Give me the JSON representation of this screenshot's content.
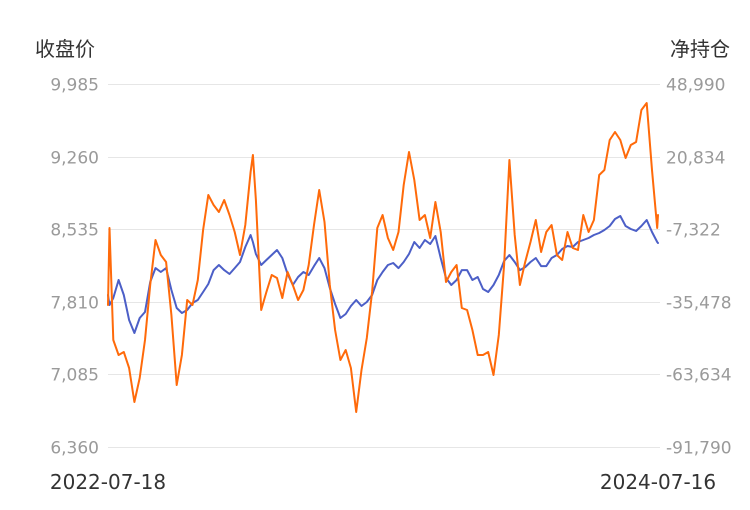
{
  "chart_data": {
    "type": "line",
    "ylabel": "收盘价",
    "y2label": "净持仓",
    "ylim": [
      6360,
      9985
    ],
    "y2lim": [
      -91790,
      48990
    ],
    "y_tick_labels": [
      "9,985",
      "9,260",
      "8,535",
      "7,810",
      "7,085",
      "6,360"
    ],
    "y2_tick_labels": [
      "48,990",
      "20,834",
      "-7,322",
      "-35,478",
      "-63,634",
      "-91,790"
    ],
    "xlim": [
      "2022-07-18",
      "2024-07-16"
    ],
    "x_tick_labels": [
      "2022-07-18",
      "2024-07-16"
    ],
    "grid": true,
    "x": [
      "2022-07-18",
      "2022-07-20",
      "2022-07-25",
      "2022-08-01",
      "2022-08-08",
      "2022-08-15",
      "2022-08-22",
      "2022-08-29",
      "2022-09-05",
      "2022-09-12",
      "2022-09-19",
      "2022-09-26",
      "2022-10-03",
      "2022-10-10",
      "2022-10-17",
      "2022-10-24",
      "2022-10-31",
      "2022-11-07",
      "2022-11-14",
      "2022-11-21",
      "2022-11-28",
      "2022-12-05",
      "2022-12-12",
      "2022-12-19",
      "2022-12-26",
      "2023-01-02",
      "2023-01-09",
      "2023-01-16",
      "2023-01-23",
      "2023-01-26",
      "2023-01-30",
      "2023-02-06",
      "2023-02-13",
      "2023-02-20",
      "2023-02-27",
      "2023-03-06",
      "2023-03-13",
      "2023-03-20",
      "2023-03-27",
      "2023-04-03",
      "2023-04-10",
      "2023-04-17",
      "2023-04-24",
      "2023-05-01",
      "2023-05-08",
      "2023-05-15",
      "2023-05-22",
      "2023-05-29",
      "2023-06-05",
      "2023-06-12",
      "2023-06-19",
      "2023-06-26",
      "2023-07-03",
      "2023-07-10",
      "2023-07-17",
      "2023-07-24",
      "2023-07-31",
      "2023-08-07",
      "2023-08-14",
      "2023-08-21",
      "2023-08-28",
      "2023-09-04",
      "2023-09-11",
      "2023-09-18",
      "2023-09-25",
      "2023-10-02",
      "2023-10-09",
      "2023-10-16",
      "2023-10-23",
      "2023-10-30",
      "2023-11-06",
      "2023-11-13",
      "2023-11-20",
      "2023-11-27",
      "2023-12-04",
      "2023-12-11",
      "2023-12-18",
      "2023-12-25",
      "2024-01-01",
      "2024-01-08",
      "2024-01-15",
      "2024-01-22",
      "2024-01-29",
      "2024-02-05",
      "2024-02-12",
      "2024-02-19",
      "2024-02-26",
      "2024-03-04",
      "2024-03-11",
      "2024-03-18",
      "2024-03-25",
      "2024-04-01",
      "2024-04-08",
      "2024-04-15",
      "2024-04-22",
      "2024-04-29",
      "2024-05-06",
      "2024-05-13",
      "2024-05-20",
      "2024-05-27",
      "2024-06-03",
      "2024-06-10",
      "2024-06-17",
      "2024-06-24",
      "2024-07-01",
      "2024-07-08",
      "2024-07-15",
      "2024-07-16"
    ],
    "series": [
      {
        "axis": "left",
        "color": "#4c5fc7",
        "values": [
          7878,
          7778,
          7848,
          8028,
          7878,
          7628,
          7498,
          7648,
          7708,
          8008,
          8147,
          8108,
          8147,
          7928,
          7748,
          7698,
          7728,
          7798,
          7828,
          7908,
          7988,
          8127,
          8177,
          8127,
          8088,
          8147,
          8207,
          8357,
          8477,
          8407,
          8287,
          8177,
          8227,
          8277,
          8327,
          8247,
          8088,
          7978,
          8058,
          8108,
          8078,
          8167,
          8247,
          8147,
          7948,
          7788,
          7648,
          7688,
          7768,
          7828,
          7768,
          7808,
          7878,
          8028,
          8108,
          8177,
          8197,
          8147,
          8207,
          8287,
          8407,
          8347,
          8427,
          8387,
          8467,
          8247,
          8048,
          7978,
          8028,
          8127,
          8127,
          8028,
          8058,
          7938,
          7908,
          7978,
          8078,
          8217,
          8277,
          8207,
          8127,
          8157,
          8207,
          8247,
          8167,
          8167,
          8247,
          8277,
          8337,
          8367,
          8357,
          8407,
          8427,
          8447,
          8477,
          8497,
          8527,
          8567,
          8637,
          8667,
          8567,
          8537,
          8517,
          8567,
          8627,
          8507,
          8407,
          8397
        ]
      },
      {
        "axis": "right",
        "color": "#ff6a0a",
        "values": [
          -36722,
          -6862,
          -50295,
          -56112,
          -54949,
          -61154,
          -74339,
          -65032,
          -50295,
          -28966,
          -11515,
          -17332,
          -20047,
          -40600,
          -67746,
          -56112,
          -34783,
          -36722,
          -27027,
          -7637,
          5936,
          2058,
          -657,
          3997,
          -1820,
          -8413,
          -17332,
          -5698,
          14855,
          21448,
          3997,
          -38661,
          -31681,
          -25088,
          -26252,
          -34008,
          -23925,
          -28966,
          -34783,
          -30905,
          -21210,
          -5698,
          7875,
          -4535,
          -28966,
          -46417,
          -58051,
          -54173,
          -61154,
          -78217,
          -61929,
          -49520,
          -31681,
          -6862,
          -1820,
          -10740,
          -15393,
          -8413,
          9814,
          22611,
          11753,
          -3759,
          -1820,
          -10740,
          3221,
          -8413,
          -27803,
          -23925,
          -21210,
          -37886,
          -38661,
          -46417,
          -56112,
          -56112,
          -54949,
          -63868,
          -48356,
          -21210,
          19509,
          -9576,
          -28966,
          -20047,
          -12291,
          -3759,
          -16169,
          -8413,
          -5698,
          -17332,
          -19271,
          -8413,
          -14618,
          -15393,
          -1820,
          -8413,
          -3759,
          13692,
          15631,
          27265,
          30367,
          27265,
          20284,
          25326,
          26489,
          38899,
          41613,
          15631,
          -6862,
          -1820
        ]
      }
    ]
  }
}
